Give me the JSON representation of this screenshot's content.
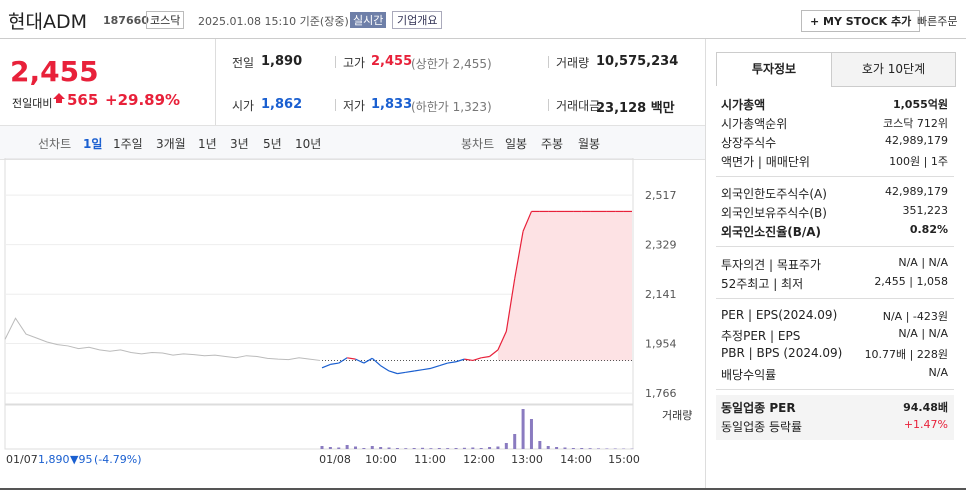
{
  "header": {
    "name": "현대ADM",
    "code": "187660",
    "market": "코스닥",
    "timestamp": "2025.01.08 15:10 기준(장중)",
    "realtime": "실시간",
    "company_info": "기업개요",
    "my_stock": "+ MY STOCK 추가",
    "quick_order": "빠른주문"
  },
  "price": {
    "current": "2,455",
    "change_label": "전일대비",
    "change": "565",
    "change_rate": "+29.89%"
  },
  "summary": {
    "rows": [
      [
        {
          "label": "전일",
          "value": "1,890"
        },
        {
          "label": "고가",
          "value": "2,455",
          "note": "(상한가 2,455)"
        },
        {
          "label": "거래량",
          "value": "10,575,234"
        }
      ],
      [
        {
          "label": "시가",
          "value": "1,862"
        },
        {
          "label": "저가",
          "value": "1,833",
          "note": "(하한가 1,323)"
        },
        {
          "label": "거래대금",
          "value": "23,128 백만"
        }
      ]
    ]
  },
  "chart_tabs": {
    "line_label": "선차트",
    "line": [
      "1일",
      "1주일",
      "3개월",
      "1년",
      "3년",
      "5년",
      "10년"
    ],
    "candle_label": "봉차트",
    "candle": [
      "일봉",
      "주봉",
      "월봉"
    ]
  },
  "chart_data": {
    "type": "line",
    "ylim": [
      1740,
      2650
    ],
    "yticks": [
      {
        "value": 2517,
        "label": "2,517"
      },
      {
        "value": 2329,
        "label": "2,329"
      },
      {
        "value": 2141,
        "label": "2,141"
      },
      {
        "value": 1954,
        "label": "1,954"
      },
      {
        "value": 1766,
        "label": "1,766"
      }
    ],
    "reference": 1890,
    "previous_day": {
      "label": "01/07",
      "close": "1,890",
      "change": "▼95",
      "change_rate": "(-4.79%)",
      "values": [
        1970,
        2050,
        1990,
        1975,
        1960,
        1950,
        1945,
        1935,
        1940,
        1930,
        1925,
        1930,
        1920,
        1915,
        1920,
        1918,
        1910,
        1915,
        1912,
        1908,
        1910,
        1905,
        1900,
        1908,
        1905,
        1898,
        1895,
        1893,
        1900,
        1895,
        1890
      ]
    },
    "values": [
      1862,
      1875,
      1880,
      1900,
      1895,
      1880,
      1898,
      1870,
      1850,
      1840,
      1845,
      1850,
      1855,
      1860,
      1870,
      1880,
      1885,
      1895,
      1890,
      1900,
      1905,
      1930,
      2000,
      2200,
      2380,
      2455,
      2455,
      2455,
      2455,
      2455,
      2455,
      2455,
      2455,
      2455,
      2455,
      2455,
      2455,
      2455
    ],
    "xticks": [
      "01/08",
      "10:00",
      "11:00",
      "12:00",
      "13:00",
      "14:00",
      "15:00"
    ],
    "volume_label": "거래량",
    "volume": [
      30,
      20,
      15,
      40,
      25,
      10,
      30,
      20,
      15,
      10,
      8,
      10,
      12,
      8,
      10,
      9,
      10,
      12,
      15,
      10,
      20,
      25,
      60,
      150,
      400,
      300,
      80,
      30,
      20,
      15,
      10,
      10,
      8,
      6,
      5,
      5,
      4,
      3
    ]
  },
  "info": {
    "tabs": [
      "투자정보",
      "호가 10단계"
    ],
    "groups": [
      [
        {
          "label": "시가총액",
          "value": "1,055억원",
          "bold": true
        },
        {
          "label": "시가총액순위",
          "value": "코스닥 712위"
        },
        {
          "label": "상장주식수",
          "value": "42,989,179"
        },
        {
          "label": "액면가 | 매매단위",
          "value": "100원 | 1주"
        }
      ],
      [
        {
          "label": "외국인한도주식수(A)",
          "value": "42,989,179"
        },
        {
          "label": "외국인보유주식수(B)",
          "value": "351,223"
        },
        {
          "label": "외국인소진율(B/A)",
          "value": "0.82%",
          "bold": true
        }
      ],
      [
        {
          "label": "투자의견 | 목표주가",
          "value": "N/A | N/A"
        },
        {
          "label": "52주최고 | 최저",
          "value": "2,455 | 1,058"
        }
      ],
      [
        {
          "label": "PER | EPS(2024.09)",
          "value": "N/A | -423원"
        },
        {
          "label": "추정PER | EPS",
          "value": "N/A | N/A"
        },
        {
          "label": "PBR | BPS (2024.09)",
          "value": "10.77배 | 228원"
        },
        {
          "label": "배당수익률",
          "value": "N/A"
        }
      ],
      [
        {
          "label": "동일업종 PER",
          "value": "94.48배",
          "bold": true
        },
        {
          "label": "동일업종 등락률",
          "value": "+1.47%",
          "red": true
        }
      ]
    ]
  }
}
